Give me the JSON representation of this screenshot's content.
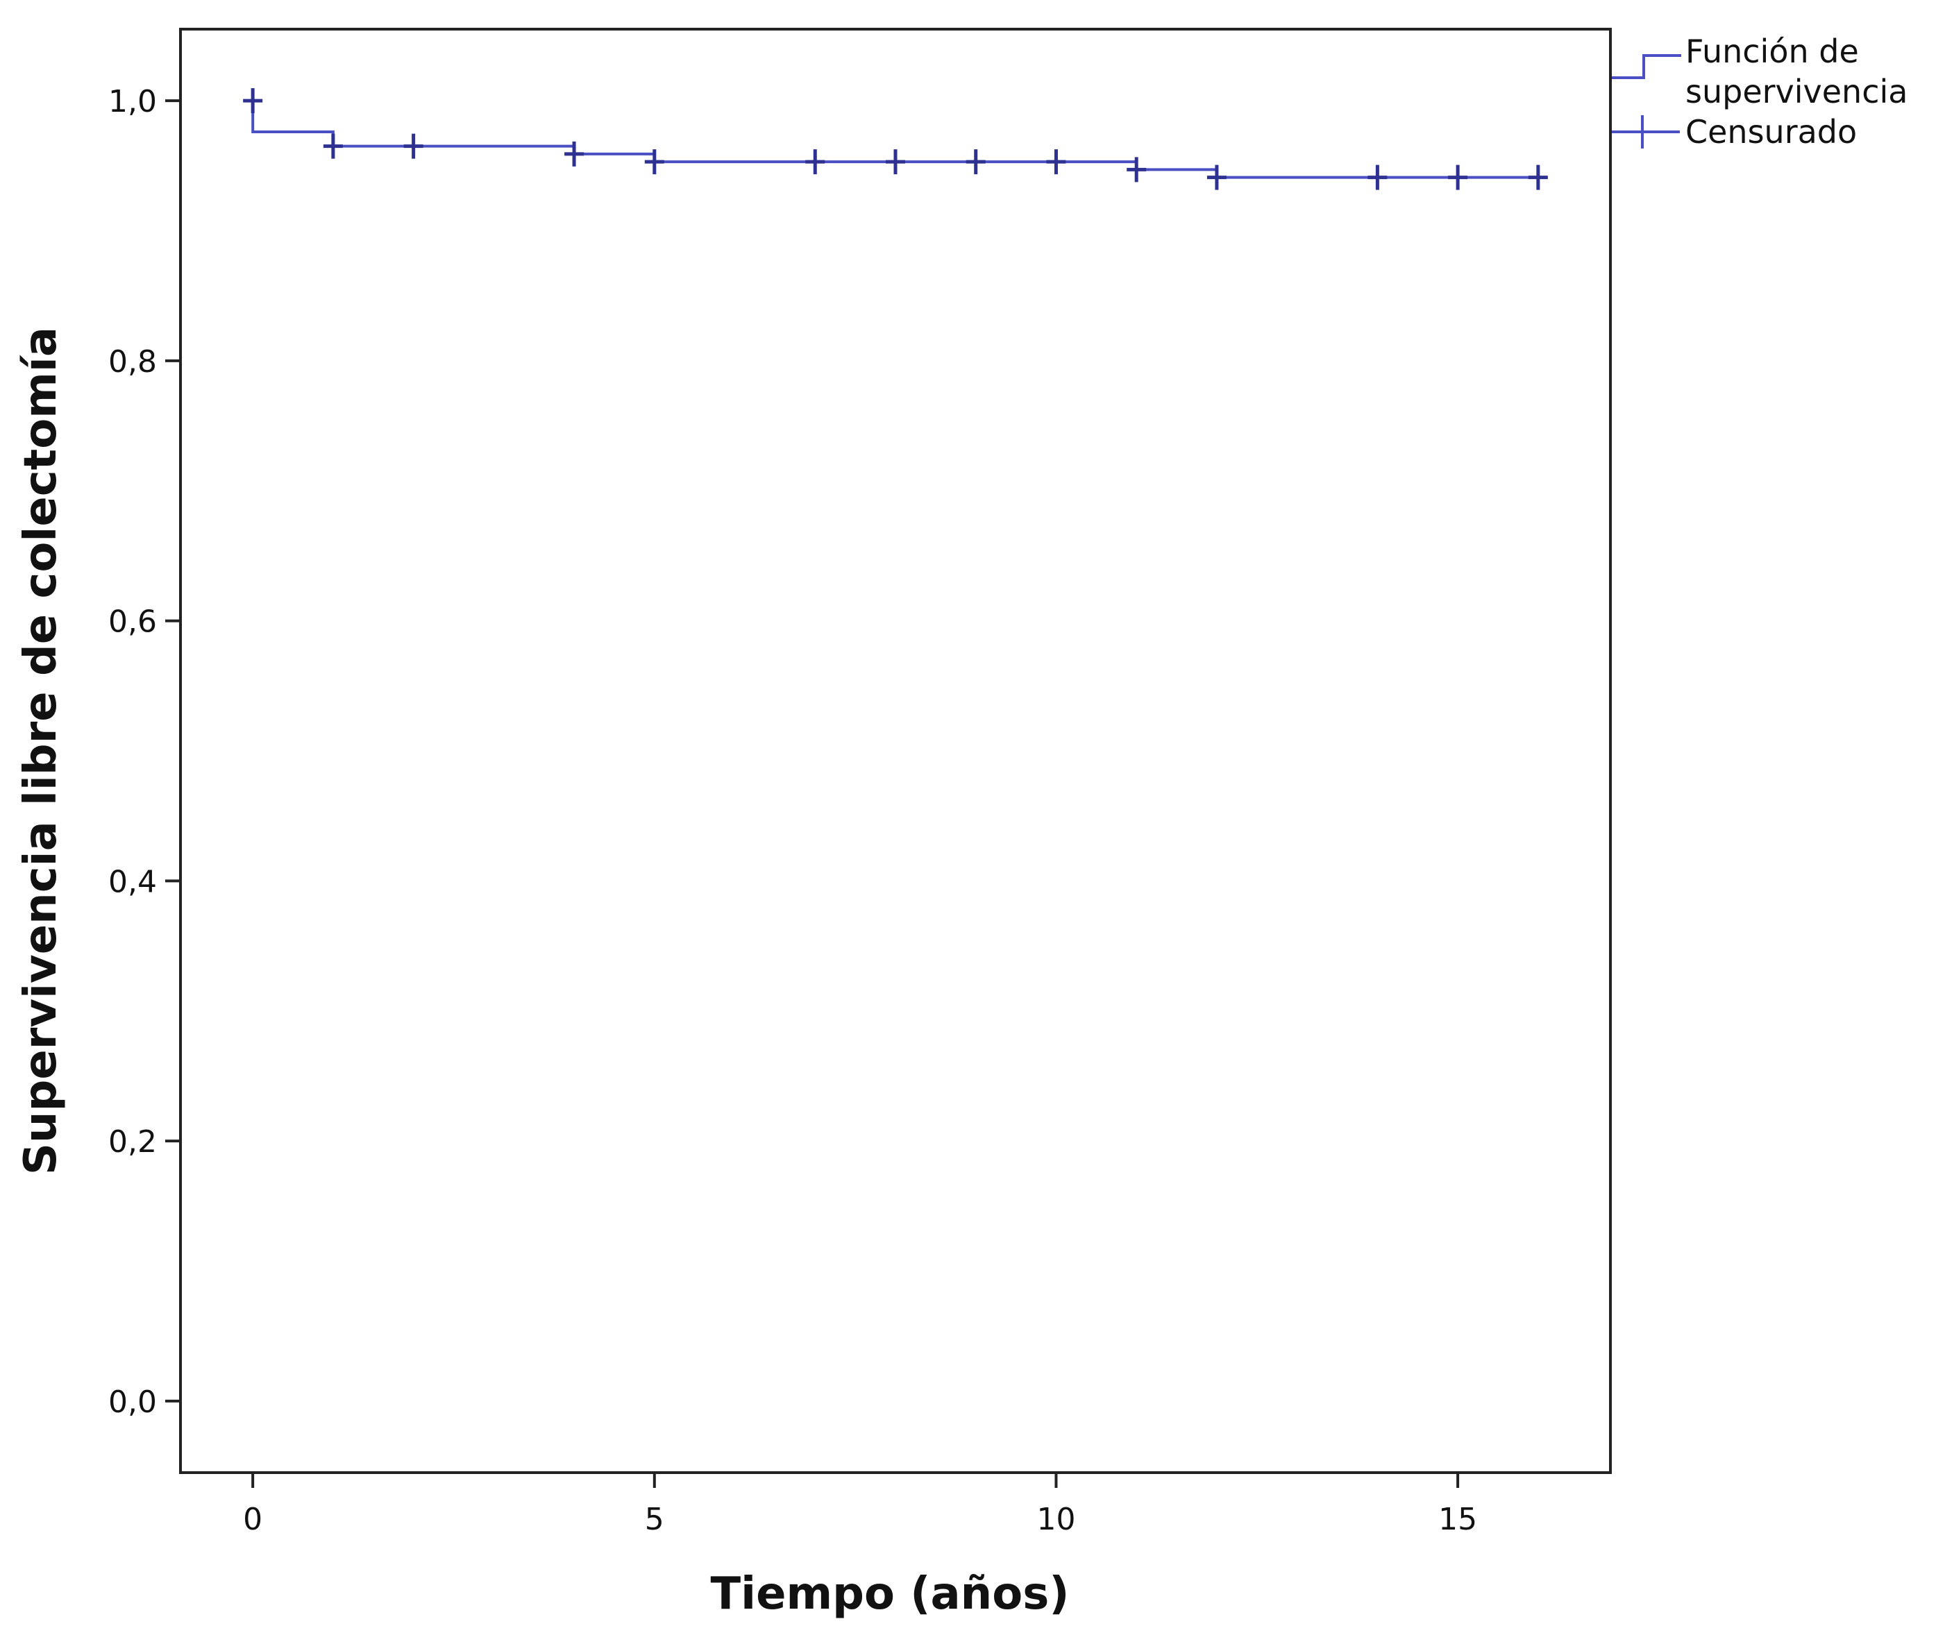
{
  "chart_data": {
    "type": "line",
    "subtype": "kaplan-meier-step",
    "xlabel": "Tiempo (años)",
    "ylabel": "Supervivencia libre de colectomía",
    "xlim": [
      -0.9,
      16.9
    ],
    "ylim": [
      -0.055,
      1.055
    ],
    "x_ticks": [
      0,
      5,
      10,
      15
    ],
    "y_ticks": [
      0.0,
      0.2,
      0.4,
      0.6,
      0.8,
      1.0
    ],
    "x_tick_labels": [
      "0",
      "5",
      "10",
      "15"
    ],
    "y_tick_labels": [
      "0,0",
      "0,2",
      "0,4",
      "0,6",
      "0,8",
      "1,0"
    ],
    "grid": false,
    "legend_position": "outside-top-right",
    "legend": {
      "survival_label_line1": "Función de",
      "survival_label_line2": "supervivencia",
      "censored_label": "Censurado"
    },
    "series": [
      {
        "steps": [
          {
            "x": 0,
            "y": 1.0
          },
          {
            "x": 0,
            "y": 0.976
          },
          {
            "x": 1,
            "y": 0.976
          },
          {
            "x": 1,
            "y": 0.965
          },
          {
            "x": 4,
            "y": 0.965
          },
          {
            "x": 4,
            "y": 0.959
          },
          {
            "x": 5,
            "y": 0.959
          },
          {
            "x": 5,
            "y": 0.953
          },
          {
            "x": 11,
            "y": 0.953
          },
          {
            "x": 11,
            "y": 0.947
          },
          {
            "x": 12,
            "y": 0.947
          },
          {
            "x": 12,
            "y": 0.941
          },
          {
            "x": 16.1,
            "y": 0.941
          }
        ],
        "censored": [
          {
            "x": 0,
            "y": 1.0
          },
          {
            "x": 1,
            "y": 0.965
          },
          {
            "x": 2,
            "y": 0.965
          },
          {
            "x": 4,
            "y": 0.959
          },
          {
            "x": 5,
            "y": 0.953
          },
          {
            "x": 7,
            "y": 0.953
          },
          {
            "x": 8,
            "y": 0.953
          },
          {
            "x": 9,
            "y": 0.953
          },
          {
            "x": 10,
            "y": 0.953
          },
          {
            "x": 11,
            "y": 0.947
          },
          {
            "x": 12,
            "y": 0.941
          },
          {
            "x": 14,
            "y": 0.941
          },
          {
            "x": 15,
            "y": 0.941
          },
          {
            "x": 16,
            "y": 0.941
          }
        ]
      }
    ],
    "colors": {
      "survival_line": "#4a4fc4",
      "censor_mark": "#2e3191",
      "axis": "#222222"
    }
  }
}
